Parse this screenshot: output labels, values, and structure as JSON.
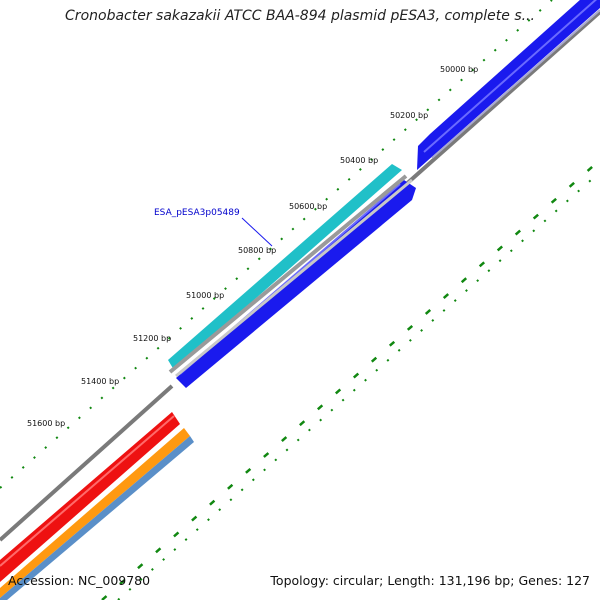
{
  "title": "Cronobacter sakazakii ATCC BAA-894 plasmid pESA3, complete s...",
  "footer": {
    "accession_label": "Accession:",
    "accession": "NC_009780",
    "topology_label": "Topology:",
    "topology": "circular;",
    "length_label": "Length:",
    "length": "131,196 bp;",
    "genes_label": "Genes:",
    "genes": "127"
  },
  "ticks": [
    {
      "label": "50000 bp"
    },
    {
      "label": "50200 bp"
    },
    {
      "label": "50400 bp"
    },
    {
      "label": "50600 bp"
    },
    {
      "label": "50800 bp"
    },
    {
      "label": "51000 bp"
    },
    {
      "label": "51200 bp"
    },
    {
      "label": "51400 bp"
    },
    {
      "label": "51600 bp"
    }
  ],
  "gene_label": "ESA_pESA3p05489",
  "colors": {
    "forward_cds": "#1a1aee",
    "reverse_cds": "#20c0c8",
    "backbone": "#808080",
    "red_feature": "#ee1111",
    "orange_feature": "#ff9910",
    "steelblue_feature": "#5a8fc8",
    "tick_green": "#118811",
    "label_blue": "#0000cc"
  }
}
